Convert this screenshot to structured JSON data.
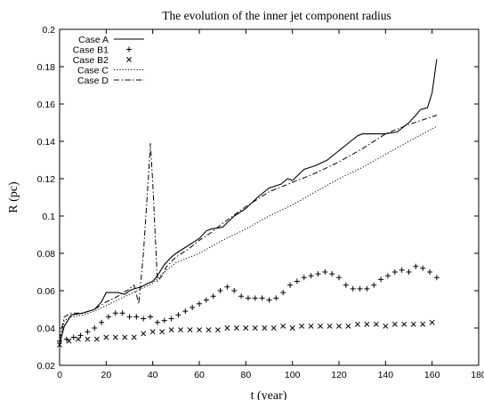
{
  "chart_data": {
    "type": "line",
    "title": "The evolution of the inner jet component radius",
    "xlabel": "t (year)",
    "ylabel": "R (pc)",
    "xlim": [
      0,
      180
    ],
    "ylim": [
      0.02,
      0.2
    ],
    "xticks": [
      0,
      20,
      40,
      60,
      80,
      100,
      120,
      140,
      160,
      180
    ],
    "yticks": [
      0.02,
      0.04,
      0.06,
      0.08,
      0.1,
      0.12,
      0.14,
      0.16,
      0.18,
      0.2
    ],
    "grid": false,
    "legend_position": "top-left",
    "series": [
      {
        "name": "Case A",
        "style": "solid",
        "color": "#000000",
        "x": [
          0,
          2,
          5,
          10,
          15,
          18,
          20,
          22,
          25,
          28,
          30,
          32,
          35,
          38,
          40,
          42,
          45,
          48,
          50,
          55,
          60,
          63,
          65,
          70,
          75,
          80,
          85,
          90,
          95,
          98,
          100,
          105,
          110,
          115,
          120,
          125,
          128,
          130,
          133,
          135,
          140,
          145,
          150,
          153,
          155,
          158,
          160,
          161,
          162
        ],
        "y": [
          0.031,
          0.041,
          0.047,
          0.048,
          0.05,
          0.054,
          0.059,
          0.059,
          0.059,
          0.058,
          0.06,
          0.061,
          0.062,
          0.064,
          0.065,
          0.068,
          0.074,
          0.078,
          0.08,
          0.084,
          0.088,
          0.092,
          0.093,
          0.094,
          0.1,
          0.104,
          0.11,
          0.115,
          0.117,
          0.12,
          0.119,
          0.125,
          0.127,
          0.13,
          0.135,
          0.14,
          0.143,
          0.144,
          0.144,
          0.144,
          0.144,
          0.145,
          0.15,
          0.154,
          0.157,
          0.158,
          0.166,
          0.175,
          0.184
        ]
      },
      {
        "name": "Case B1",
        "style": "plus",
        "color": "#000000",
        "x": [
          0,
          3,
          6,
          9,
          12,
          15,
          18,
          21,
          24,
          27,
          30,
          33,
          36,
          39,
          42,
          45,
          48,
          51,
          54,
          57,
          60,
          63,
          66,
          69,
          72,
          75,
          78,
          81,
          84,
          87,
          90,
          93,
          96,
          99,
          102,
          105,
          108,
          111,
          114,
          117,
          120,
          123,
          126,
          129,
          132,
          135,
          138,
          141,
          144,
          147,
          150,
          153,
          156,
          159,
          162
        ],
        "y": [
          0.033,
          0.034,
          0.035,
          0.036,
          0.038,
          0.04,
          0.043,
          0.046,
          0.048,
          0.048,
          0.046,
          0.046,
          0.045,
          0.046,
          0.043,
          0.044,
          0.045,
          0.047,
          0.049,
          0.051,
          0.053,
          0.055,
          0.057,
          0.06,
          0.062,
          0.06,
          0.057,
          0.056,
          0.056,
          0.056,
          0.055,
          0.056,
          0.059,
          0.063,
          0.065,
          0.067,
          0.068,
          0.069,
          0.07,
          0.069,
          0.067,
          0.063,
          0.061,
          0.061,
          0.061,
          0.063,
          0.066,
          0.068,
          0.07,
          0.071,
          0.07,
          0.073,
          0.072,
          0.07,
          0.067
        ]
      },
      {
        "name": "Case B2",
        "style": "cross",
        "color": "#000000",
        "x": [
          0,
          4,
          8,
          12,
          16,
          20,
          24,
          28,
          32,
          36,
          40,
          44,
          48,
          52,
          56,
          60,
          64,
          68,
          72,
          76,
          80,
          84,
          88,
          92,
          96,
          100,
          104,
          108,
          112,
          116,
          120,
          124,
          128,
          132,
          136,
          140,
          144,
          148,
          152,
          156,
          160
        ],
        "y": [
          0.031,
          0.033,
          0.034,
          0.034,
          0.034,
          0.035,
          0.035,
          0.035,
          0.035,
          0.037,
          0.038,
          0.038,
          0.039,
          0.039,
          0.039,
          0.039,
          0.039,
          0.039,
          0.04,
          0.04,
          0.04,
          0.04,
          0.04,
          0.04,
          0.041,
          0.04,
          0.041,
          0.041,
          0.041,
          0.041,
          0.041,
          0.041,
          0.042,
          0.042,
          0.042,
          0.041,
          0.042,
          0.042,
          0.042,
          0.042,
          0.043
        ]
      },
      {
        "name": "Case C",
        "style": "dotted",
        "color": "#000000",
        "x": [
          0,
          2,
          5,
          10,
          15,
          20,
          25,
          30,
          35,
          40,
          45,
          50,
          60,
          70,
          80,
          90,
          100,
          110,
          120,
          130,
          140,
          150,
          162
        ],
        "y": [
          0.033,
          0.044,
          0.046,
          0.047,
          0.049,
          0.052,
          0.055,
          0.058,
          0.061,
          0.064,
          0.07,
          0.075,
          0.08,
          0.087,
          0.093,
          0.1,
          0.106,
          0.113,
          0.12,
          0.126,
          0.133,
          0.14,
          0.148
        ]
      },
      {
        "name": "Case D",
        "style": "dashdot",
        "color": "#000000",
        "x": [
          0,
          2,
          5,
          10,
          15,
          20,
          25,
          30,
          32,
          34,
          36,
          38,
          39,
          40,
          42,
          44,
          46,
          50,
          55,
          60,
          65,
          70,
          80,
          90,
          100,
          110,
          120,
          130,
          140,
          150,
          162
        ],
        "y": [
          0.034,
          0.046,
          0.048,
          0.048,
          0.05,
          0.054,
          0.057,
          0.061,
          0.063,
          0.053,
          0.08,
          0.118,
          0.139,
          0.118,
          0.065,
          0.068,
          0.073,
          0.078,
          0.082,
          0.087,
          0.091,
          0.096,
          0.105,
          0.113,
          0.118,
          0.123,
          0.129,
          0.136,
          0.144,
          0.149,
          0.154
        ]
      }
    ]
  }
}
